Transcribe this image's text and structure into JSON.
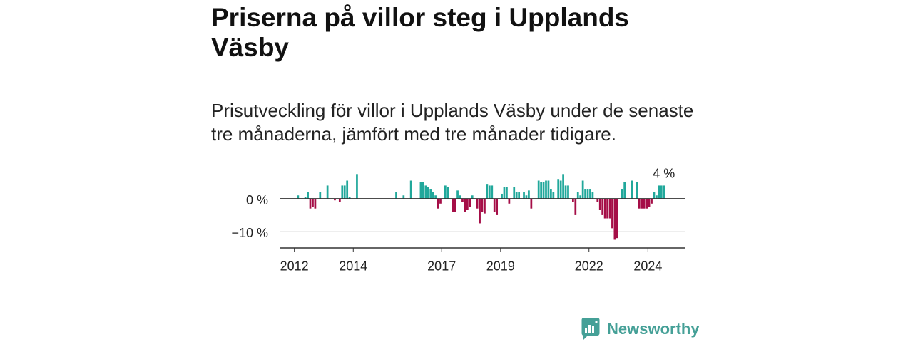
{
  "chart_data": {
    "type": "bar",
    "title": "Priserna på villor steg i Upplands Väsby",
    "subtitle": "Prisutveckling för villor i Upplands Väsby under de senaste tre månaderna, jämfört med tre månader tidigare.",
    "x_start": 2012,
    "points_per_year": 12,
    "values": [
      null,
      1,
      null,
      null,
      0.5,
      2,
      -3,
      -2.5,
      -3,
      null,
      2,
      null,
      null,
      4,
      null,
      null,
      -0.5,
      null,
      -1,
      4,
      4,
      5.5,
      0.5,
      null,
      null,
      7.5,
      null,
      null,
      null,
      null,
      null,
      null,
      null,
      null,
      null,
      null,
      null,
      null,
      null,
      null,
      null,
      2,
      null,
      null,
      1,
      null,
      null,
      5.5,
      null,
      null,
      null,
      5,
      5,
      4,
      3.5,
      3,
      2,
      1,
      -3,
      -1.5,
      null,
      4,
      3.5,
      null,
      -4,
      -4,
      2.5,
      1,
      -1,
      -4,
      -3.5,
      -2.5,
      1,
      null,
      -3,
      -7.5,
      -4,
      -4.5,
      4.5,
      4,
      4,
      -4,
      -5,
      null,
      1.5,
      3.5,
      3.5,
      -1.5,
      null,
      3.5,
      2,
      2,
      null,
      2,
      1,
      2.5,
      -3,
      null,
      null,
      5.5,
      5,
      5,
      5.5,
      5.5,
      3,
      2,
      null,
      6,
      5.5,
      7.5,
      4,
      4,
      null,
      -1,
      -5,
      2,
      1,
      5.5,
      3,
      3,
      3,
      2,
      null,
      -1,
      -3.5,
      -5,
      -6,
      -6,
      -6,
      -9,
      -12.5,
      -12,
      null,
      3,
      5,
      null,
      null,
      5.5,
      null,
      5,
      -3,
      -3,
      -3,
      -3,
      -2.5,
      -1.5,
      2,
      1,
      4,
      4,
      4
    ],
    "xlim": [
      2011.5,
      2025.25
    ],
    "ylim": [
      -15,
      8
    ],
    "grid": true,
    "yticks": [
      {
        "value": 0,
        "label": "0 %"
      },
      {
        "value": -10,
        "label": "−10 %"
      }
    ],
    "xticks": [
      {
        "value": 2012,
        "label": "2012"
      },
      {
        "value": 2014,
        "label": "2014"
      },
      {
        "value": 2017,
        "label": "2017"
      },
      {
        "value": 2019,
        "label": "2019"
      },
      {
        "value": 2022,
        "label": "2022"
      },
      {
        "value": 2024,
        "label": "2024"
      }
    ],
    "annotation": {
      "x": 2024.5,
      "value": 4,
      "label": "4 %"
    }
  },
  "logo": {
    "text": "Newsworthy",
    "icon": "newsworthy-bar-chart-bubble-icon"
  },
  "colors": {
    "positive": "#21a89b",
    "negative": "#a50e47",
    "text": "#222222",
    "axis": "#333333",
    "grid": "#dddddd",
    "brand": "#45a097"
  }
}
